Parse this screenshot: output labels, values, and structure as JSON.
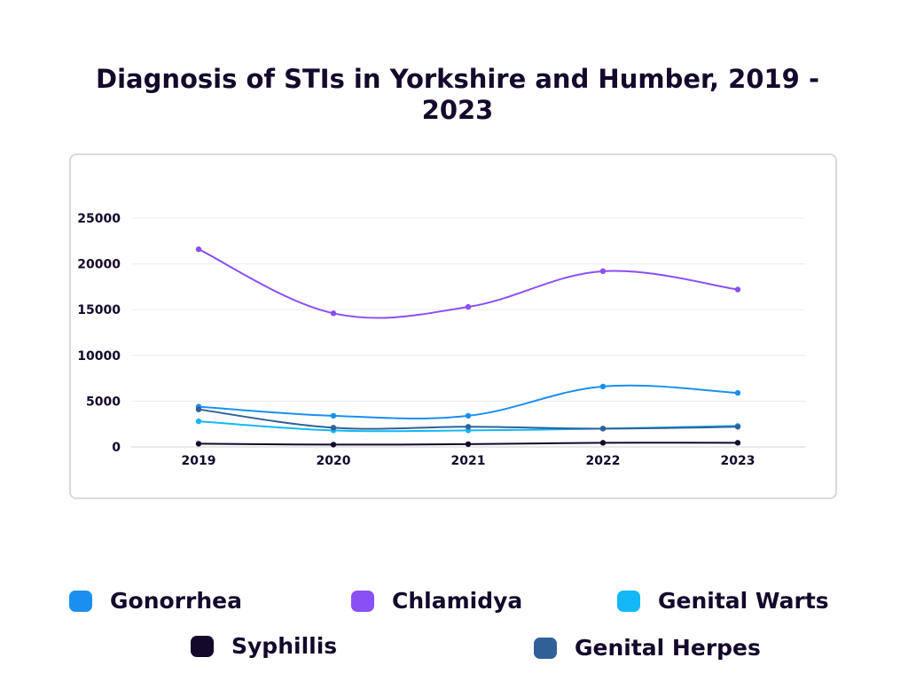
{
  "title": "Diagnosis of STIs in Yorkshire and Humber, 2019 - 2023",
  "chart_data": {
    "type": "line",
    "title": "Diagnosis of STIs in Yorkshire and Humber, 2019 - 2023",
    "categories": [
      "2019",
      "2020",
      "2021",
      "2022",
      "2023"
    ],
    "y_ticks": [
      "0",
      "5000",
      "10000",
      "15000",
      "20000",
      "25000"
    ],
    "ylim": [
      0,
      25000
    ],
    "grid": true,
    "legend_position": "bottom",
    "series": [
      {
        "name": "Gonorrhea",
        "color": "#1a8ff0",
        "values": [
          4400,
          3400,
          3400,
          6600,
          5900
        ]
      },
      {
        "name": "Chlamidya",
        "color": "#8a4ff5",
        "values": [
          21600,
          14600,
          15300,
          19200,
          17200
        ]
      },
      {
        "name": "Genital Warts",
        "color": "#12b8f5",
        "values": [
          2800,
          1800,
          1800,
          2000,
          2300
        ]
      },
      {
        "name": "Syphillis",
        "color": "#14082b",
        "values": [
          350,
          250,
          300,
          450,
          450
        ]
      },
      {
        "name": "Genital Herpes",
        "color": "#2f6198",
        "values": [
          4100,
          2100,
          2200,
          2000,
          2200
        ]
      }
    ]
  }
}
